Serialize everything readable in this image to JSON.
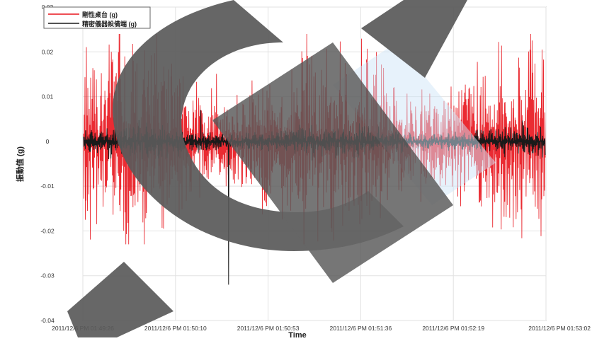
{
  "chart_data": {
    "type": "line",
    "title": "",
    "xlabel": "Time",
    "ylabel": "振動值 (g)",
    "ylim": [
      -0.04,
      0.03
    ],
    "yticks": [
      0.03,
      0.02,
      0.01,
      0,
      -0.01,
      -0.02,
      -0.03,
      -0.04
    ],
    "ytick_labels": [
      "0.03",
      "0.02",
      "0.01",
      "0",
      "-0.01",
      "-0.02",
      "-0.03",
      "-0.04"
    ],
    "xlim": [
      "2011/12/6 PM 01:49:26",
      "2011/12/6 PM 01:53:02"
    ],
    "xtick_labels": [
      "2011/12/6 PM 01:49:26",
      "2011/12/6 PM 01:50:10",
      "2011/12/6 PM 01:50:53",
      "2011/12/6 PM 01:51:36",
      "2011/12/6 PM 01:52:19",
      "2011/12/6 PM 01:53:02"
    ],
    "grid": true,
    "legend": "top-left",
    "series": [
      {
        "name": "剛性桌台 (g)",
        "color": "#e8141c",
        "peak_max": 0.024,
        "peak_min": -0.023,
        "typical_amplitude": 0.009
      },
      {
        "name": "精密儀器設備端 (g)",
        "color": "#1a1a1a",
        "peak_max": 0.007,
        "peak_min": -0.032,
        "typical_amplitude": 0.0015
      }
    ]
  },
  "watermark": {
    "shape_color": "#5a5a5a",
    "accent_color": "#cfe6f7"
  }
}
